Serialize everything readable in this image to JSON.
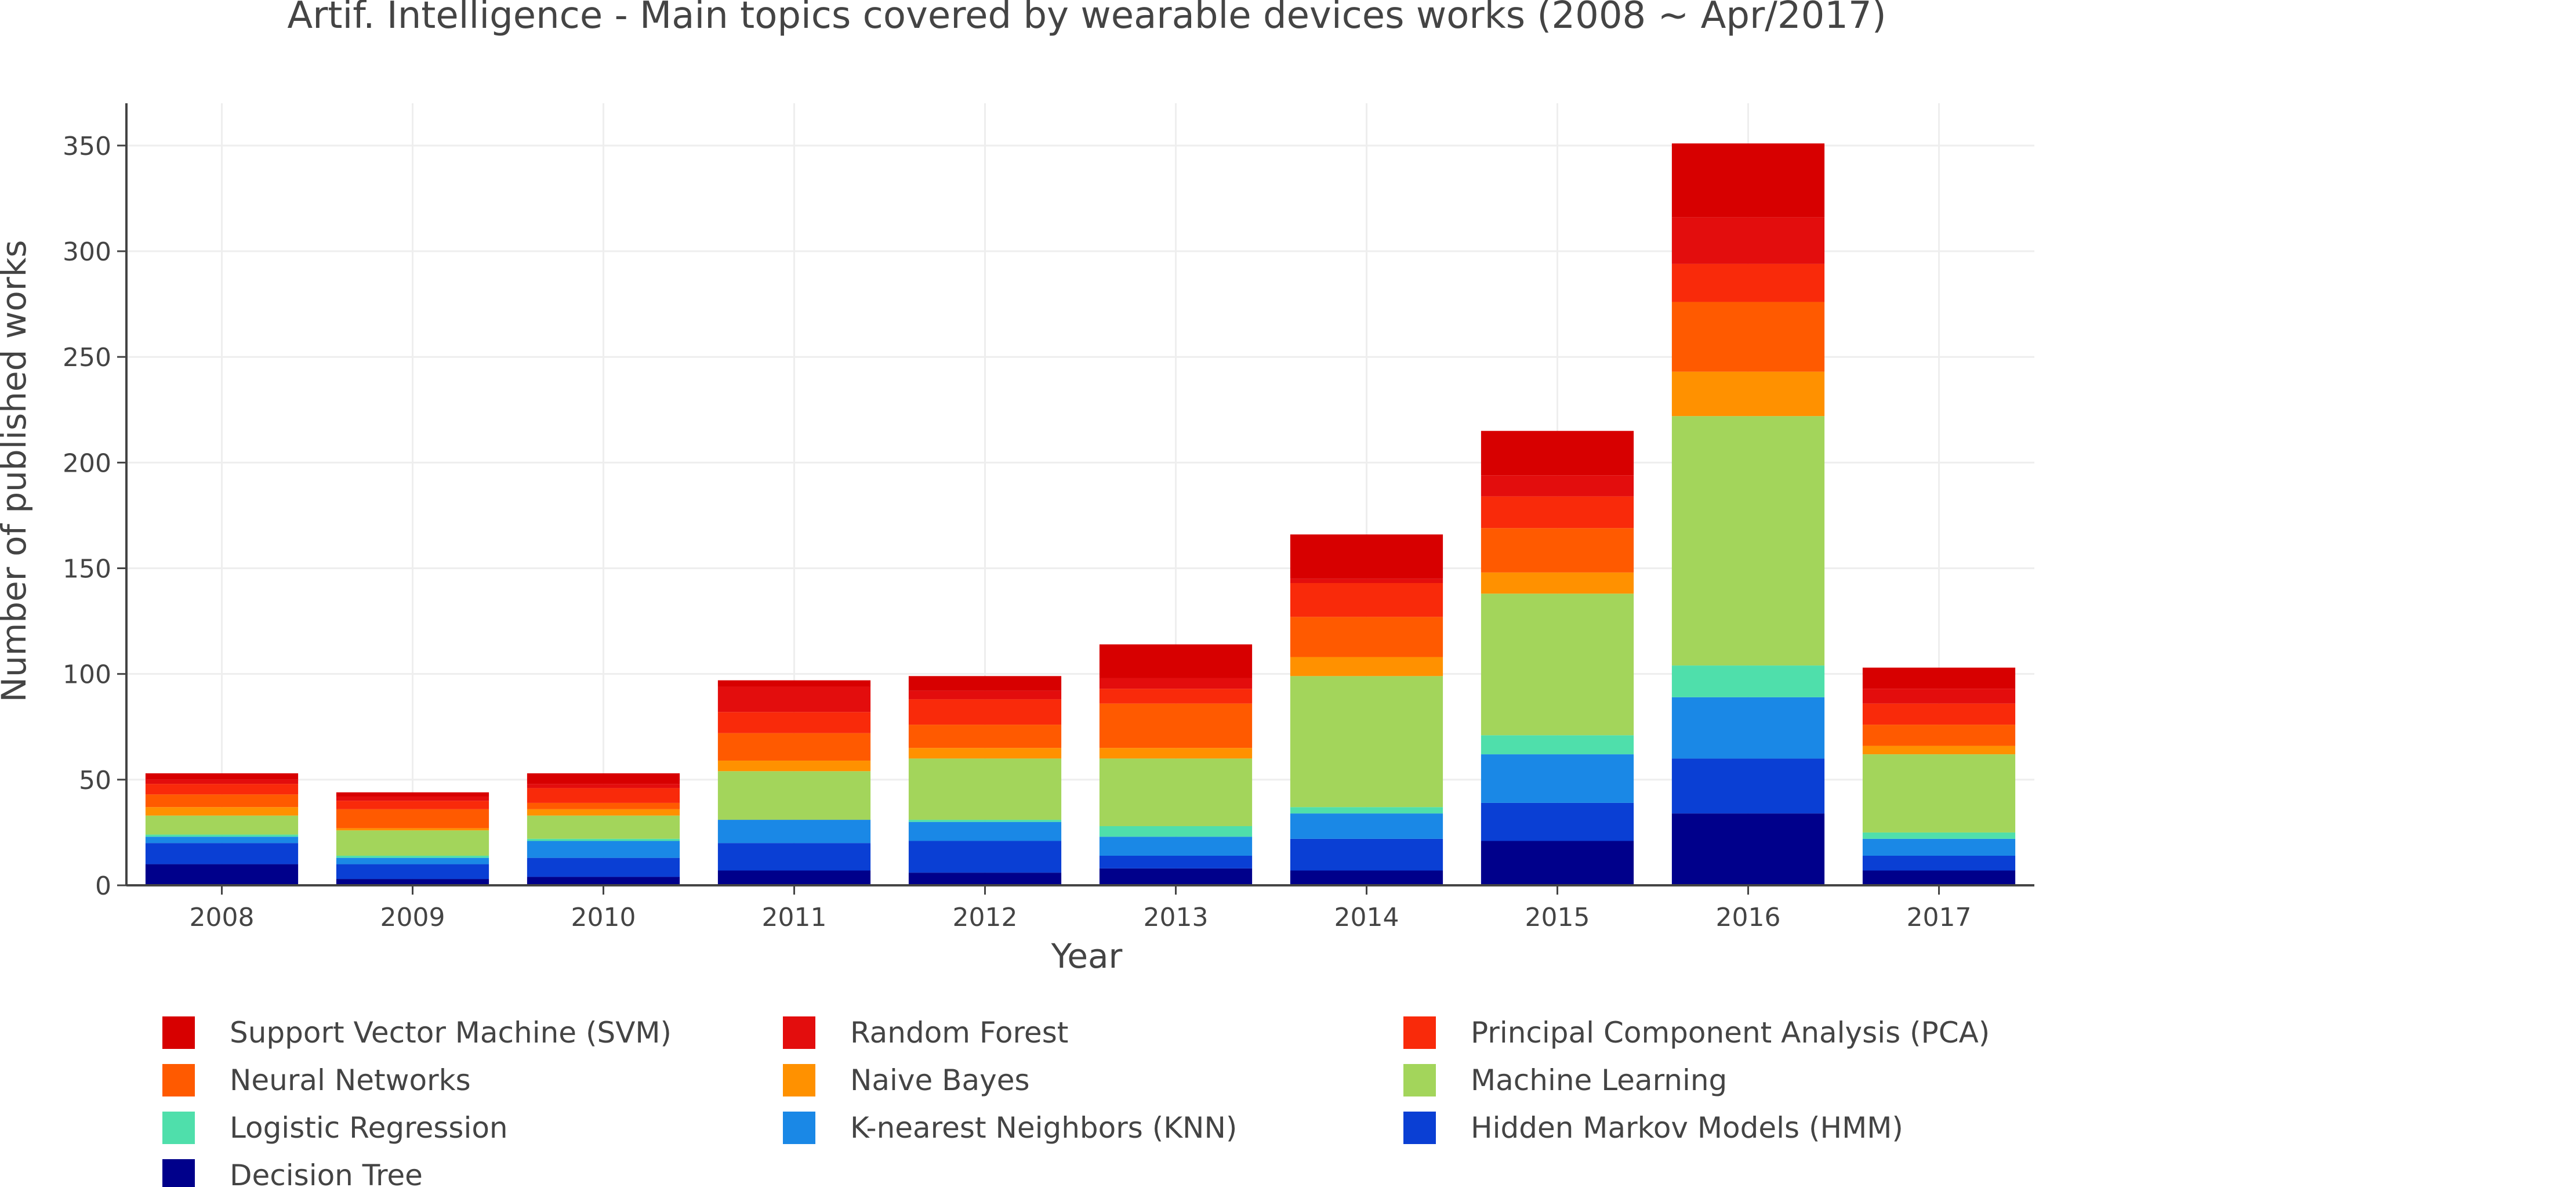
{
  "chart_data": {
    "type": "bar",
    "stacked": true,
    "title": "Artif. Intelligence - Main topics covered by wearable devices works (2008 ~ Apr/2017)",
    "xlabel": "Year",
    "ylabel": "Number of published works",
    "ylim": [
      0,
      370
    ],
    "yticks": [
      0,
      50,
      100,
      150,
      200,
      250,
      300,
      350
    ],
    "grid": true,
    "legend_position": "bottom",
    "categories": [
      "2008",
      "2009",
      "2010",
      "2011",
      "2012",
      "2013",
      "2014",
      "2015",
      "2016",
      "2017"
    ],
    "series": [
      {
        "name": "Decision Tree",
        "color": "#00008b",
        "values": [
          10,
          3,
          4,
          7,
          6,
          8,
          7,
          21,
          34,
          7
        ]
      },
      {
        "name": "Hidden Markov Models (HMM)",
        "color": "#0a3fd4",
        "values": [
          10,
          7,
          9,
          13,
          15,
          6,
          15,
          18,
          26,
          7
        ]
      },
      {
        "name": "K-nearest Neighbors (KNN)",
        "color": "#1a88e6",
        "values": [
          3,
          3,
          8,
          11,
          9,
          9,
          12,
          23,
          29,
          8
        ]
      },
      {
        "name": "Logistic Regression",
        "color": "#4fdfab",
        "values": [
          1,
          1,
          1,
          0,
          1,
          5,
          3,
          9,
          15,
          3
        ]
      },
      {
        "name": "Machine Learning",
        "color": "#a3d55b",
        "values": [
          9,
          12,
          11,
          23,
          29,
          32,
          62,
          67,
          118,
          37
        ]
      },
      {
        "name": "Naive Bayes",
        "color": "#ff9100",
        "values": [
          4,
          1,
          3,
          5,
          5,
          5,
          9,
          10,
          21,
          4
        ]
      },
      {
        "name": "Neural Networks",
        "color": "#ff5a00",
        "values": [
          6,
          9,
          3,
          13,
          11,
          21,
          19,
          21,
          33,
          10
        ]
      },
      {
        "name": "Principal Component Analysis (PCA)",
        "color": "#f92a0a",
        "values": [
          5,
          4,
          7,
          10,
          12,
          7,
          16,
          15,
          18,
          10
        ]
      },
      {
        "name": "Random Forest",
        "color": "#e30d0d",
        "values": [
          2,
          2,
          2,
          12,
          4,
          5,
          2,
          10,
          22,
          7
        ]
      },
      {
        "name": "Support Vector Machine (SVM)",
        "color": "#d70000",
        "values": [
          3,
          2,
          5,
          3,
          7,
          16,
          21,
          21,
          35,
          10
        ]
      }
    ],
    "legend_order": [
      "Support Vector Machine (SVM)",
      "Random Forest",
      "Principal Component Analysis (PCA)",
      "Neural Networks",
      "Naive Bayes",
      "Machine Learning",
      "Logistic Regression",
      "K-nearest Neighbors (KNN)",
      "Hidden Markov Models (HMM)",
      "Decision Tree"
    ]
  }
}
